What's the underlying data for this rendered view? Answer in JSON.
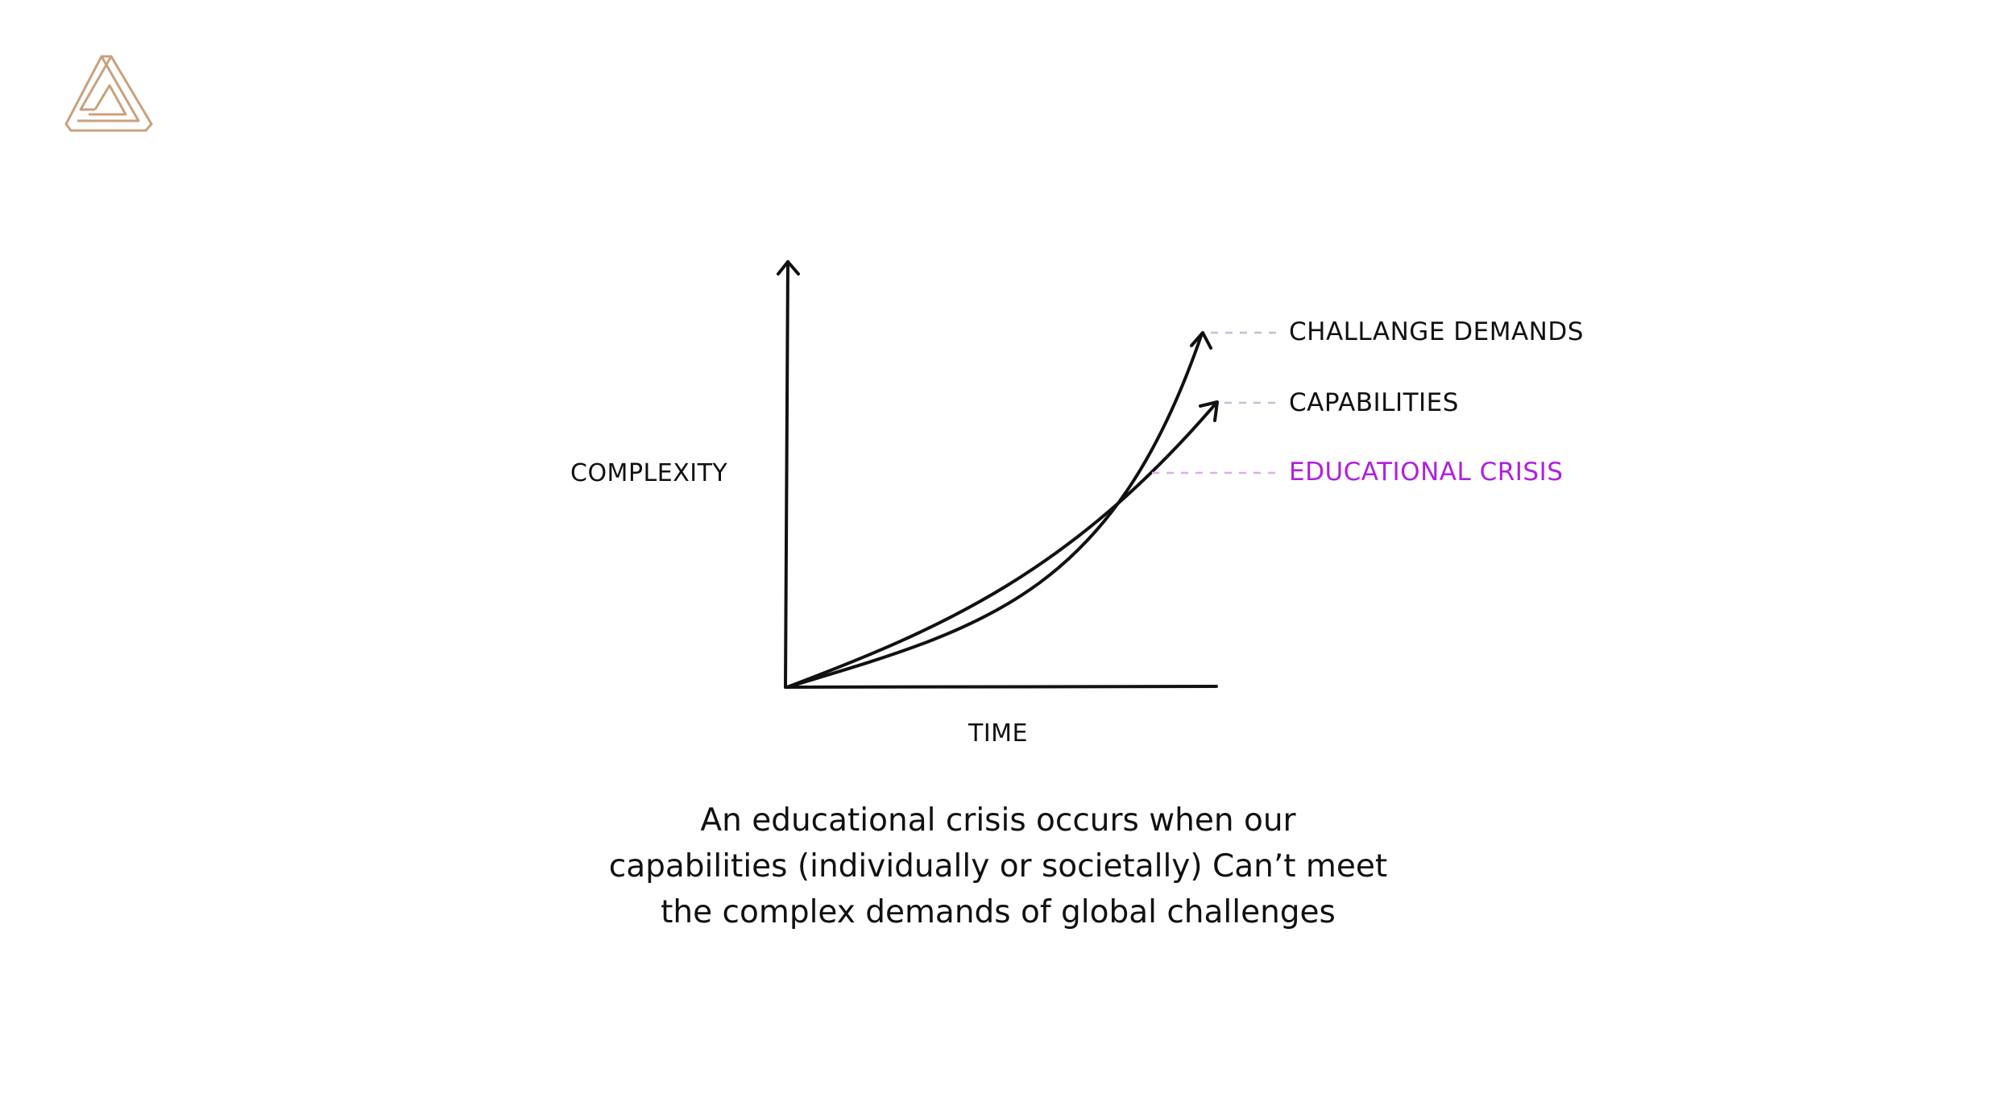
{
  "diagram": {
    "y_axis_label": "COMPLEXITY",
    "x_axis_label": "TIME",
    "curves": [
      {
        "label": "CHALLANGE DEMANDS",
        "color": "#111111",
        "leader_color": "#c9bdd4"
      },
      {
        "label": "CAPABILITIES",
        "color": "#111111",
        "leader_color": "#c9bdd4"
      },
      {
        "label": "EDUCATIONAL CRISIS",
        "color": "#b020e0",
        "leader_color": "#e6a8f2"
      }
    ]
  },
  "caption": {
    "lines": [
      "An educational crisis occurs when our",
      "capabilities (individually or societally) Can’t meet",
      "the complex demands of global challenges"
    ]
  },
  "colors": {
    "logo": "#c9a27e",
    "axis": "#111111",
    "accent": "#b020e0"
  },
  "icons": {
    "logo": "impossible-triangle-logo-icon"
  }
}
